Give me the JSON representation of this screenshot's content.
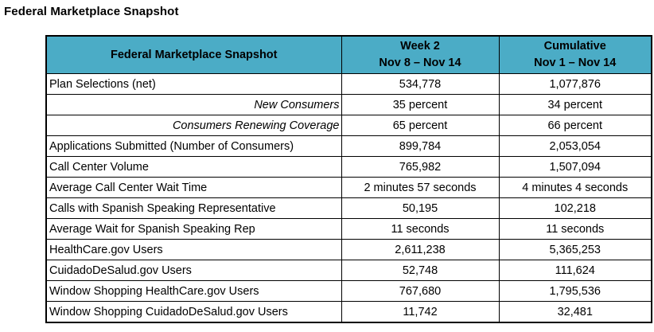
{
  "page_title": "Federal Marketplace Snapshot",
  "colors": {
    "header_bg": "#4BACC6",
    "border": "#000000",
    "text": "#000000"
  },
  "table": {
    "header": {
      "col1": "Federal Marketplace Snapshot",
      "col2_line1": "Week 2",
      "col2_line2": "Nov 8 – Nov 14",
      "col3_line1": "Cumulative",
      "col3_line2": "Nov 1 – Nov 14"
    },
    "rows": [
      {
        "label": "Plan Selections (net)",
        "week2": "534,778",
        "cumulative": "1,077,876",
        "style": "normal"
      },
      {
        "label": "New Consumers",
        "week2": "35 percent",
        "cumulative": "34 percent",
        "style": "italic-right"
      },
      {
        "label": "Consumers Renewing Coverage",
        "week2": "65 percent",
        "cumulative": "66 percent",
        "style": "italic-right"
      },
      {
        "label": "Applications Submitted (Number of Consumers)",
        "week2": "899,784",
        "cumulative": "2,053,054",
        "style": "normal"
      },
      {
        "label": "Call Center Volume",
        "week2": "765,982",
        "cumulative": "1,507,094",
        "style": "normal"
      },
      {
        "label": "Average Call Center Wait Time",
        "week2": "2 minutes 57 seconds",
        "cumulative": "4 minutes 4 seconds",
        "style": "normal"
      },
      {
        "label": "Calls with Spanish Speaking Representative",
        "week2": "50,195",
        "cumulative": "102,218",
        "style": "normal"
      },
      {
        "label": "Average Wait for Spanish Speaking Rep",
        "week2": "11 seconds",
        "cumulative": "11 seconds",
        "style": "normal"
      },
      {
        "label": "HealthCare.gov Users",
        "week2": "2,611,238",
        "cumulative": "5,365,253",
        "style": "normal"
      },
      {
        "label": "CuidadoDeSalud.gov Users",
        "week2": "52,748",
        "cumulative": "111,624",
        "style": "normal"
      },
      {
        "label": "Window Shopping HealthCare.gov Users",
        "week2": "767,680",
        "cumulative": "1,795,536",
        "style": "normal"
      },
      {
        "label": "Window Shopping CuidadoDeSalud.gov Users",
        "week2": "11,742",
        "cumulative": "32,481",
        "style": "normal"
      }
    ]
  }
}
